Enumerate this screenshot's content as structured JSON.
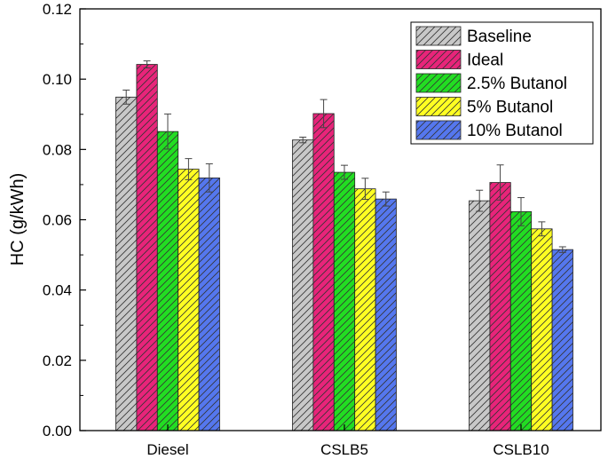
{
  "chart_data": {
    "type": "bar",
    "title": "",
    "xlabel": "",
    "ylabel": "HC (g/kWh)",
    "ylim": [
      0,
      0.12
    ],
    "yticks": [
      "0.00",
      "0.02",
      "0.04",
      "0.06",
      "0.08",
      "0.10",
      "0.12"
    ],
    "categories": [
      "Diesel",
      "CSLB5",
      "CSLB10"
    ],
    "legend_position": "top-right",
    "hatch": "diagonal",
    "series": [
      {
        "name": "Baseline",
        "color": "#c8c8c8",
        "values": [
          0.0949,
          0.0827,
          0.0654
        ],
        "errors": [
          0.002,
          0.0008,
          0.003
        ]
      },
      {
        "name": "Ideal",
        "color": "#e8247a",
        "values": [
          0.1042,
          0.0902,
          0.0706
        ],
        "errors": [
          0.001,
          0.004,
          0.005
        ]
      },
      {
        "name": "2.5% Butanol",
        "color": "#22dd22",
        "values": [
          0.0851,
          0.0735,
          0.0623
        ],
        "errors": [
          0.005,
          0.002,
          0.004
        ]
      },
      {
        "name": "5% Butanol",
        "color": "#ffff22",
        "values": [
          0.0744,
          0.0688,
          0.0574
        ],
        "errors": [
          0.003,
          0.003,
          0.002
        ]
      },
      {
        "name": "10% Butanol",
        "color": "#5577ee",
        "values": [
          0.0719,
          0.0659,
          0.0515
        ],
        "errors": [
          0.004,
          0.002,
          0.0008
        ]
      }
    ]
  }
}
